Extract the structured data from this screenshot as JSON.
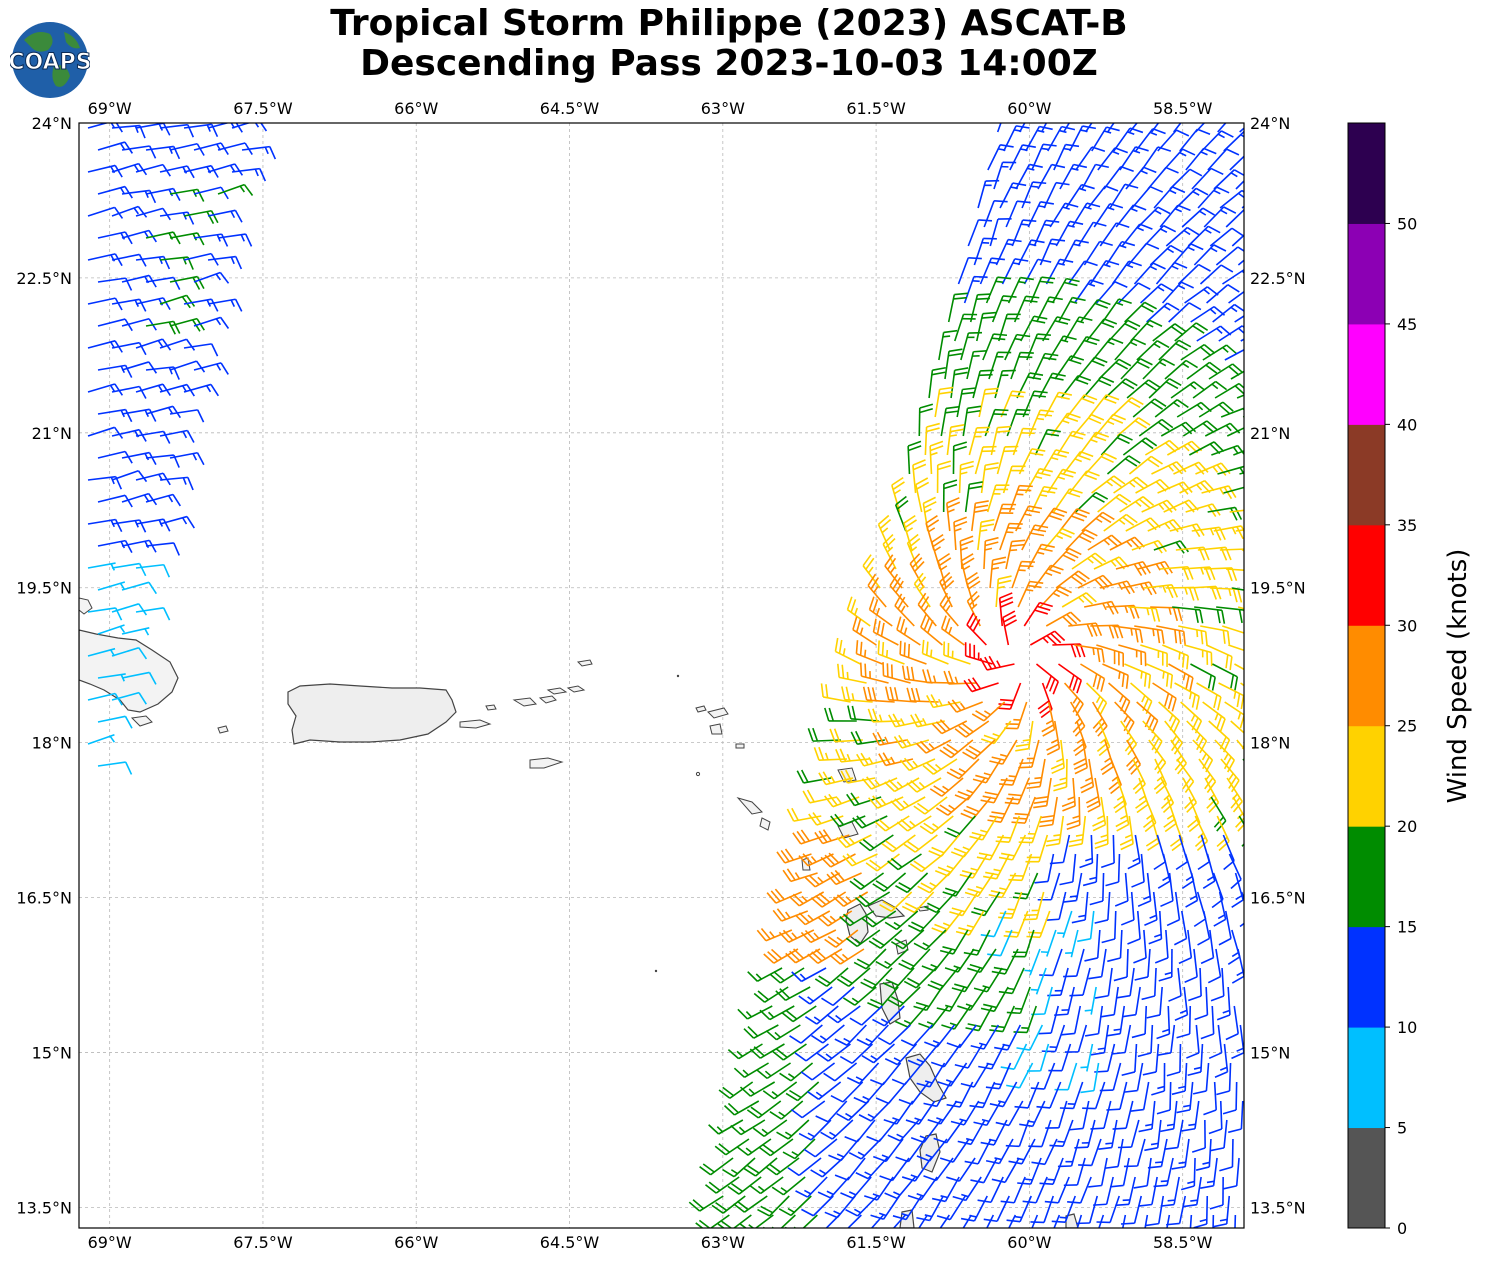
{
  "title": {
    "line1": "Tropical Storm Philippe (2023) ASCAT-B",
    "line2": "Descending Pass 2023-10-03 14:00Z"
  },
  "logo": {
    "text": "COAPS",
    "icon": "globe-logo-icon"
  },
  "map": {
    "lon_range": [
      -69.3,
      -57.9
    ],
    "lat_range": [
      13.3,
      24.0
    ],
    "lon_ticks": [
      "69°W",
      "67.5°W",
      "66°W",
      "64.5°W",
      "63°W",
      "61.5°W",
      "60°W",
      "58.5°W"
    ],
    "lon_tick_values": [
      -69,
      -67.5,
      -66,
      -64.5,
      -63,
      -61.5,
      -60,
      -58.5
    ],
    "lat_ticks": [
      "24°N",
      "22.5°N",
      "21°N",
      "19.5°N",
      "18°N",
      "16.5°N",
      "15°N",
      "13.5°N"
    ],
    "lat_tick_values": [
      24,
      22.5,
      21,
      19.5,
      18,
      16.5,
      15,
      13.5
    ],
    "gridlines": true,
    "wind_barbs": "synthetic field rendered from ASCAT-B swaths (descending pass)"
  },
  "colorbar": {
    "label": "Wind Speed (knots)",
    "ticks": [
      "0",
      "5",
      "10",
      "15",
      "20",
      "25",
      "30",
      "35",
      "40",
      "45",
      "50"
    ],
    "colors": [
      "#555555",
      "#00bfff",
      "#0032ff",
      "#008c00",
      "#ffd200",
      "#ff8c00",
      "#ff0000",
      "#8b3a26",
      "#ff00ff",
      "#8c00b4",
      "#2d0050"
    ]
  }
}
